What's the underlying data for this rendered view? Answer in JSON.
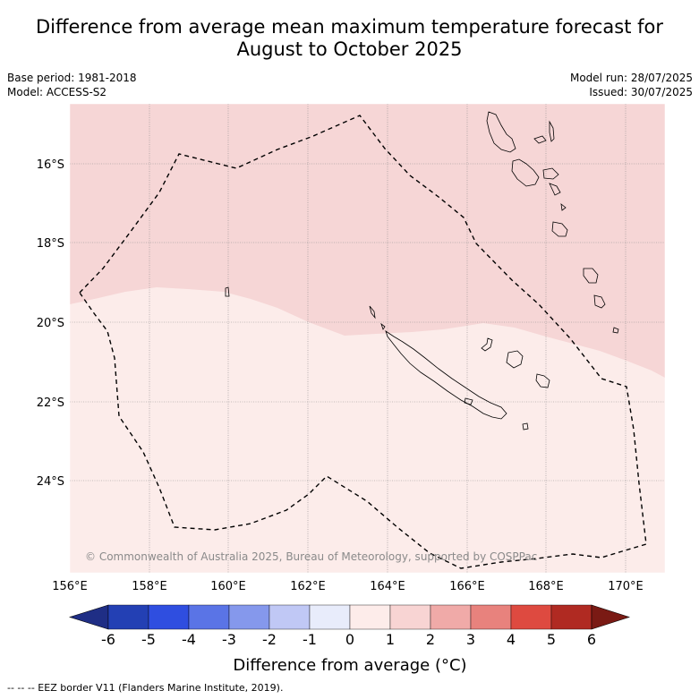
{
  "title_line1": "Difference from average mean maximum temperature forecast for",
  "title_line2": "August to October 2025",
  "base_period": "Base period: 1981-2018",
  "model": "Model: ACCESS-S2",
  "model_run": "Model run: 28/07/2025",
  "issued": "Issued: 30/07/2025",
  "copyright": "© Commonwealth of Australia 2025, Bureau of Meteorology, supported by COSPPac",
  "lon_ticks": [
    "156°E",
    "158°E",
    "160°E",
    "162°E",
    "164°E",
    "166°E",
    "168°E",
    "170°E"
  ],
  "lat_ticks": [
    "16°S",
    "18°S",
    "20°S",
    "22°S",
    "24°S"
  ],
  "colorbar": {
    "title": "Difference from average (°C)",
    "ticks": [
      "-6",
      "-5",
      "-4",
      "-3",
      "-2",
      "-1",
      "0",
      "1",
      "2",
      "3",
      "4",
      "5",
      "6"
    ],
    "colors": [
      "#1f2e85",
      "#2340b4",
      "#2f4ee0",
      "#5a74e6",
      "#8598ec",
      "#c0c8f5",
      "#e8ecfb",
      "#fdecea",
      "#f8d4d3",
      "#f0aaa8",
      "#e8827d",
      "#de4a40",
      "#b02a22",
      "#7a1a14"
    ]
  },
  "footer": "--  --  -- EEZ border V11 (Flanders Marine Institute, 2019).",
  "map_colors": {
    "anomaly_1_2": "#f6d6d6",
    "anomaly_0_1": "#fcecea"
  }
}
